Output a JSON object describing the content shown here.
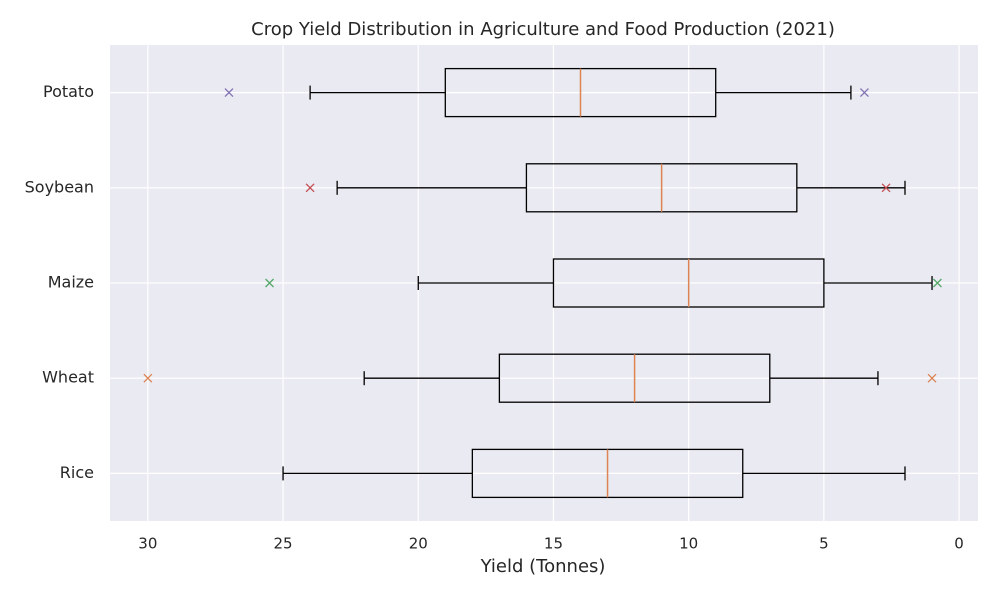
{
  "chart_data": {
    "type": "boxplot",
    "orientation": "horizontal",
    "title": "Crop Yield Distribution in Agriculture and Food Production (2021)",
    "xlabel": "Yield (Tonnes)",
    "categories": [
      "Rice",
      "Wheat",
      "Maize",
      "Soybean",
      "Potato"
    ],
    "boxes": [
      {
        "whislo": 2,
        "q1": 8,
        "med": 13,
        "q3": 18,
        "whishi": 25,
        "fliers": [],
        "flier_color": "#4c72b0"
      },
      {
        "whislo": 3,
        "q1": 7,
        "med": 12,
        "q3": 17,
        "whishi": 22,
        "fliers": [
          30,
          1
        ],
        "flier_color": "#dd8452"
      },
      {
        "whislo": 1,
        "q1": 5,
        "med": 10,
        "q3": 15,
        "whishi": 20,
        "fliers": [
          25.5,
          0.8
        ],
        "flier_color": "#55a868"
      },
      {
        "whislo": 2,
        "q1": 6,
        "med": 11,
        "q3": 16,
        "whishi": 23,
        "fliers": [
          24,
          2.7
        ],
        "flier_color": "#c44e52"
      },
      {
        "whislo": 4,
        "q1": 9,
        "med": 14,
        "q3": 19,
        "whishi": 24,
        "fliers": [
          27,
          3.5
        ],
        "flier_color": "#8172b3"
      }
    ],
    "box_color": "#000000",
    "median_color": "#dd8452",
    "background": "#eaeaf2",
    "grid": true,
    "xlim": [
      31.4,
      -0.7
    ],
    "xticks": [
      30,
      25,
      20,
      15,
      10,
      5,
      0
    ]
  }
}
